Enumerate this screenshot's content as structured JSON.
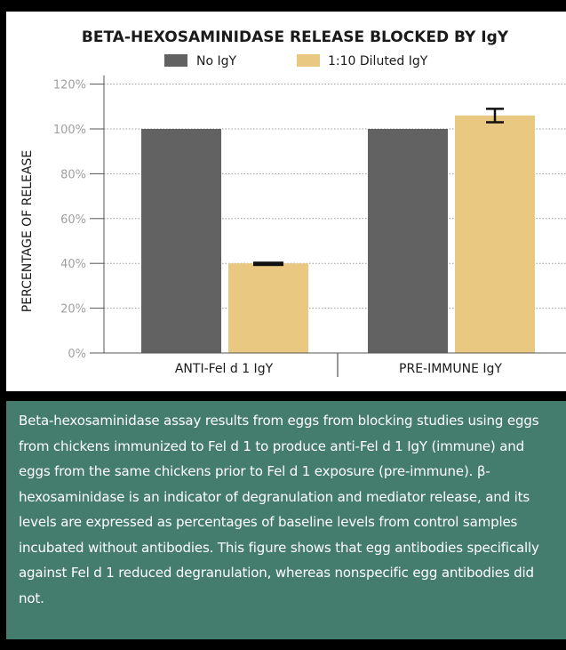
{
  "chart_data": {
    "type": "bar",
    "title": "BETA-HEXOSAMINIDASE RELEASE BLOCKED BY IgY",
    "ylabel": "PERCENTAGE OF RELEASE",
    "xlabel": "",
    "categories": [
      "ANTI-Fel d 1 IgY",
      "PRE-IMMUNE IgY"
    ],
    "series": [
      {
        "name": "No IgY",
        "values": [
          100,
          100
        ],
        "error": [
          0,
          0
        ]
      },
      {
        "name": "1:10 Diluted IgY",
        "values": [
          40,
          106
        ],
        "error": [
          1,
          3
        ]
      }
    ],
    "ylim": [
      0,
      120
    ],
    "yticks": [
      0,
      20,
      40,
      60,
      80,
      100,
      120
    ],
    "ytick_labels": [
      "0%",
      "20%",
      "40%",
      "60%",
      "80%",
      "100%",
      "120%"
    ],
    "grid": true,
    "legend": "top-center"
  },
  "colors": {
    "no_igy": "#636262",
    "diluted_igy": "#e9c981",
    "caption_bg": "#447c6d",
    "grid": "#9a9a9a"
  },
  "caption": "Beta-hexosaminidase assay results from eggs from blocking studies using eggs from chickens immunized to Fel d 1 to produce anti-Fel d 1 IgY (immune) and eggs from the same chickens prior to Fel d 1 exposure (pre-immune). β-hexosaminidase is an indicator of degranulation and mediator release, and its levels are expressed as percentages of baseline levels from control samples incubated without antibodies. This figure shows that egg antibodies specifically against Fel d 1 reduced degranulation, whereas nonspecific egg antibodies did not."
}
